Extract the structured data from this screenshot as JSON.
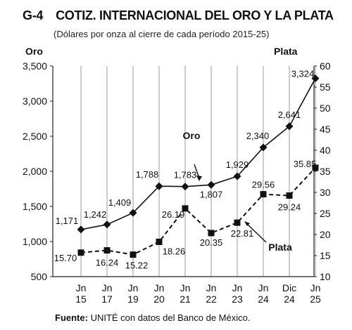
{
  "header": {
    "figure_number": "G-4",
    "title": "COTIZ. INTERNACIONAL DEL ORO Y LA PLATA",
    "subtitle": "(Dólares por onza al cierre de cada período 2015-25)"
  },
  "source": {
    "label": "Fuente:",
    "text": " UNITÉ con datos del Banco de México."
  },
  "chart_data": {
    "type": "line",
    "title": "COTIZ. INTERNACIONAL DEL ORO Y LA PLATA",
    "subtitle": "(Dólares por onza al cierre de cada período 2015-25)",
    "categories": [
      [
        "Jn",
        "15"
      ],
      [
        "Jn",
        "17"
      ],
      [
        "Jn",
        "19"
      ],
      [
        "Jn",
        "20"
      ],
      [
        "Jn",
        "21"
      ],
      [
        "Jn",
        "22"
      ],
      [
        "Jn",
        "23"
      ],
      [
        "Jn",
        "24"
      ],
      [
        "Dic",
        "24"
      ],
      [
        "Jn",
        "25"
      ]
    ],
    "left_axis": {
      "label": "Oro",
      "min": 500,
      "max": 3500,
      "step": 500,
      "ticks": [
        "500",
        "1,000",
        "1,500",
        "2,000",
        "2,500",
        "3,000",
        "3,500"
      ]
    },
    "right_axis": {
      "label": "Plata",
      "min": 10,
      "max": 60,
      "step": 5,
      "ticks": [
        "10",
        "15",
        "20",
        "25",
        "30",
        "35",
        "40",
        "45",
        "50",
        "55",
        "60"
      ]
    },
    "grid": "vertical",
    "series": [
      {
        "name": "Oro",
        "axis": "left",
        "marker": "diamond",
        "line": "solid",
        "values": [
          1171,
          1242,
          1409,
          1788,
          1783,
          1807,
          1929,
          2340,
          2641,
          3324
        ],
        "labels": [
          "1,171",
          "1,242",
          "1,409",
          "1,788",
          "1,783",
          "1,807",
          "1,929",
          "2,340",
          "2,641",
          "3,324"
        ]
      },
      {
        "name": "Plata",
        "axis": "right",
        "marker": "square",
        "line": "dashed",
        "values": [
          15.7,
          16.24,
          15.22,
          18.26,
          26.19,
          20.35,
          22.81,
          29.56,
          29.24,
          35.85
        ],
        "labels": [
          "15.70",
          "16.24",
          "15.22",
          "18.26",
          "26.19",
          "20.35",
          "22.81",
          "29.56",
          "29.24",
          "35.85"
        ]
      }
    ]
  }
}
